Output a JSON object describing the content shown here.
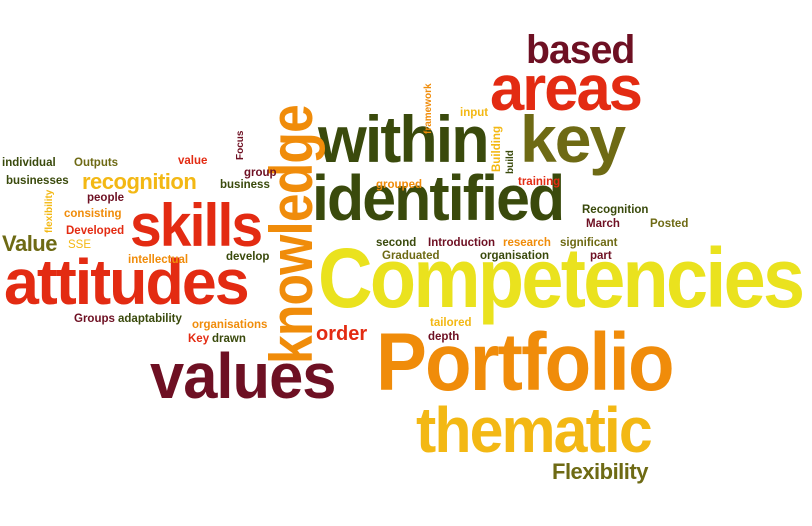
{
  "palette": {
    "yellow": "#eae21e",
    "orange": "#f08c0a",
    "amber": "#f3b814",
    "red": "#e32b12",
    "maroon": "#6e1023",
    "dark_olive": "#3a4a0c",
    "olive": "#6e6a14"
  },
  "words": {
    "competencies": "Competencies",
    "portfolio": "Portfolio",
    "attitudes": "attitudes",
    "identified": "identified",
    "within": "within",
    "values": "values",
    "thematic": "thematic",
    "areas": "areas",
    "key": "key",
    "skills": "skills",
    "knowledge": "knowledge",
    "based": "based",
    "recognition": "recognition",
    "value_capital": "Value",
    "flexibility_capital": "Flexibility",
    "order": "order",
    "individual": "individual",
    "outputs": "Outputs",
    "value": "value",
    "businesses": "businesses",
    "people": "people",
    "flexibility": "flexibility",
    "consisting": "consisting",
    "developed": "Developed",
    "sse": "SSE",
    "intellectual": "intellectual",
    "develop": "develop",
    "groups": "Groups",
    "adaptability": "adaptability",
    "organisations": "organisations",
    "key_capital": "Key",
    "drawn": "drawn",
    "focus": "Focus",
    "group": "group",
    "business": "business",
    "framework": "framework",
    "input": "input",
    "building": "Building",
    "build": "build",
    "training": "training",
    "grouped": "grouped",
    "recognition_capital": "Recognition",
    "posted": "Posted",
    "march": "March",
    "second": "second",
    "introduction": "Introduction",
    "research": "research",
    "significant": "significant",
    "graduated": "Graduated",
    "organisation": "organisation",
    "part": "part",
    "tailored": "tailored",
    "depth": "depth"
  }
}
